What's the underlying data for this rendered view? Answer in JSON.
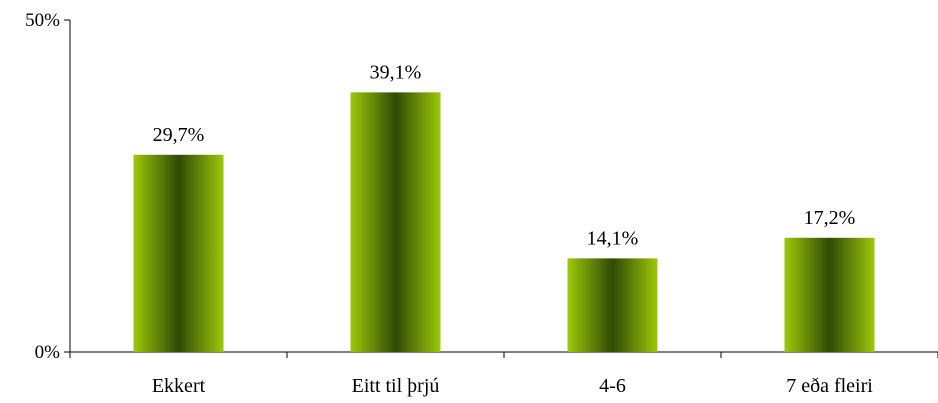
{
  "chart_data": {
    "type": "bar",
    "categories": [
      "Ekkert",
      "Eitt til þrjú",
      "4-6",
      "7 eða fleiri"
    ],
    "values": [
      29.7,
      39.1,
      14.1,
      17.2
    ],
    "data_labels": [
      "29,7%",
      "39,1%",
      "14,1%",
      "17,2%"
    ],
    "title": "",
    "xlabel": "",
    "ylabel": "",
    "ylim": [
      0,
      50
    ],
    "y_ticks": [
      {
        "value": 0,
        "label": "0%"
      },
      {
        "value": 50,
        "label": "50%"
      }
    ],
    "grid": false,
    "legend": "none",
    "colors": {
      "bar_edge": "#9dc80a",
      "bar_center": "#2f4a05",
      "axis": "#000000"
    }
  }
}
